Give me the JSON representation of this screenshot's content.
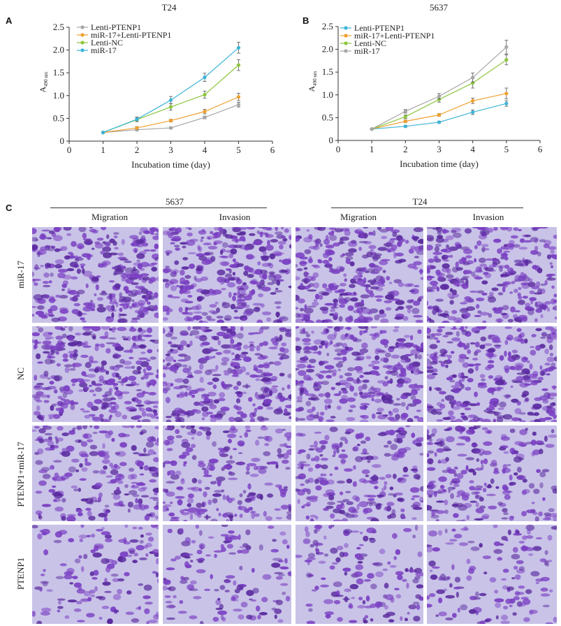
{
  "panel_a_letter": "A",
  "panel_b_letter": "B",
  "panel_c_letter": "C",
  "chart_data": [
    {
      "type": "line",
      "title": "T24",
      "xlabel": "Incubation time (day)",
      "ylabel_main": "A",
      "ylabel_sub": "490 nm",
      "xlim": [
        0,
        6
      ],
      "ylim": [
        0,
        2.5
      ],
      "xticks": [
        "0",
        "1",
        "2",
        "3",
        "4",
        "5",
        "6"
      ],
      "yticks": [
        "0",
        "0.5",
        "1.0",
        "1.5",
        "2.0",
        "2.5"
      ],
      "x": [
        1,
        2,
        3,
        4,
        5
      ],
      "legend_position": "top-left",
      "series": [
        {
          "name": "Lenti-PTENP1",
          "color": "#a6a6a6",
          "values": [
            0.19,
            0.25,
            0.29,
            0.52,
            0.8
          ],
          "errors": [
            0.01,
            0.02,
            0.02,
            0.03,
            0.05
          ]
        },
        {
          "name": "miR-17+Lenti-PTENP1",
          "color": "#f0a030",
          "values": [
            0.19,
            0.29,
            0.45,
            0.65,
            0.97
          ],
          "errors": [
            0.01,
            0.03,
            0.03,
            0.05,
            0.08
          ]
        },
        {
          "name": "Lenti-NC",
          "color": "#8cc63e",
          "values": [
            0.19,
            0.47,
            0.75,
            1.02,
            1.67
          ],
          "errors": [
            0.01,
            0.04,
            0.07,
            0.08,
            0.12
          ]
        },
        {
          "name": "miR-17",
          "color": "#3cb4d8",
          "values": [
            0.19,
            0.48,
            0.9,
            1.4,
            2.05
          ],
          "errors": [
            0.01,
            0.05,
            0.08,
            0.09,
            0.12
          ]
        }
      ]
    },
    {
      "type": "line",
      "title": "5637",
      "xlabel": "Incubation time (day)",
      "ylabel_main": "A",
      "ylabel_sub": "490 nm",
      "xlim": [
        0,
        6
      ],
      "ylim": [
        0,
        2.5
      ],
      "xticks": [
        "0",
        "1",
        "2",
        "3",
        "4",
        "5",
        "6"
      ],
      "yticks": [
        "0",
        "0.5",
        "1.0",
        "1.5",
        "2.0",
        "2.5"
      ],
      "x": [
        1,
        2,
        3,
        4,
        5
      ],
      "legend_position": "top-left",
      "series": [
        {
          "name": "Lenti-PTENP1",
          "color": "#3cb4d8",
          "values": [
            0.25,
            0.31,
            0.4,
            0.62,
            0.81
          ],
          "errors": [
            0.01,
            0.02,
            0.02,
            0.05,
            0.06
          ]
        },
        {
          "name": "miR-17+Lenti-PTENP1",
          "color": "#f0a030",
          "values": [
            0.25,
            0.42,
            0.56,
            0.87,
            1.03
          ],
          "errors": [
            0.01,
            0.03,
            0.03,
            0.06,
            0.12
          ]
        },
        {
          "name": "Lenti-NC",
          "color": "#8cc63e",
          "values": [
            0.25,
            0.52,
            0.9,
            1.26,
            1.77
          ],
          "errors": [
            0.01,
            0.04,
            0.06,
            0.11,
            0.11
          ]
        },
        {
          "name": "miR-17",
          "color": "#a6a6a6",
          "values": [
            0.25,
            0.64,
            0.97,
            1.38,
            2.05
          ],
          "errors": [
            0.01,
            0.04,
            0.06,
            0.1,
            0.15
          ]
        }
      ]
    }
  ],
  "panel_c": {
    "groups": [
      "5637",
      "T24"
    ],
    "columns": [
      "Migration",
      "Invasion",
      "Migration",
      "Invasion"
    ],
    "rows": [
      "miR-17",
      "NC",
      "PTENP1+miR-17",
      "PTENP1"
    ],
    "image_colors": {
      "background": "#c9c3e8",
      "cell": "#7a3fc2",
      "dark": "#5a2a9e"
    }
  }
}
